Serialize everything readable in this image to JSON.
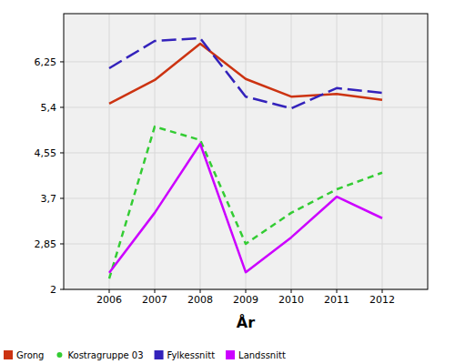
{
  "chart_data": {
    "type": "line",
    "x_label": "År",
    "x": [
      2006,
      2007,
      2008,
      2009,
      2010,
      2011,
      2012
    ],
    "xlim": [
      2005,
      2013
    ],
    "xticks": [
      2006,
      2007,
      2008,
      2009,
      2010,
      2011,
      2012
    ],
    "ylim": [
      2,
      7.15
    ],
    "yticks": [
      2,
      {
        "value": 2.85,
        "label": "2,85"
      },
      {
        "value": 3.7,
        "label": "3,7"
      },
      {
        "value": 4.55,
        "label": "4,55"
      },
      {
        "value": 5.4,
        "label": "5,4"
      },
      {
        "value": 6.25,
        "label": "6,25"
      }
    ],
    "grid": true,
    "legend": "bottom",
    "series": [
      {
        "name": "Grong",
        "color": "#cc3311",
        "line_style": "solid",
        "marker": "square",
        "values": [
          5.47,
          5.91,
          6.59,
          5.93,
          5.6,
          5.65,
          5.54
        ]
      },
      {
        "name": "Kostragruppe 03",
        "color": "#33cc33",
        "line_style": "dashed",
        "marker": "circle",
        "values": [
          2.2,
          5.04,
          4.79,
          2.85,
          3.43,
          3.87,
          4.18
        ]
      },
      {
        "name": "Fylkessnitt",
        "color": "#3322bb",
        "line_style": "longdash",
        "marker": "square",
        "values": [
          6.13,
          6.64,
          6.69,
          5.6,
          5.38,
          5.76,
          5.67
        ]
      },
      {
        "name": "Landssnitt",
        "color": "#cc00ff",
        "line_style": "solid",
        "marker": "square",
        "values": [
          2.31,
          3.43,
          4.72,
          2.32,
          2.97,
          3.73,
          3.33
        ]
      }
    ]
  }
}
